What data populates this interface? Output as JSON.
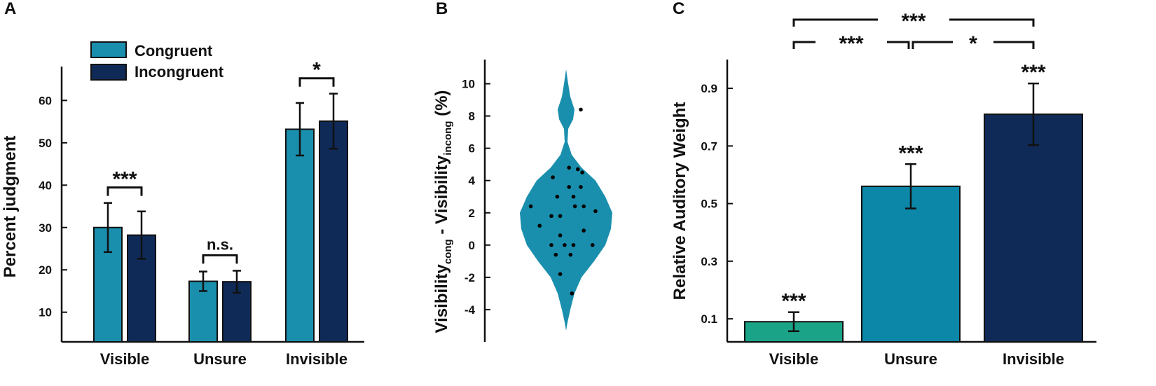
{
  "chart_data": [
    {
      "panel": "A",
      "type": "bar",
      "ylabel": "Percent judgment",
      "ylim": [
        3,
        68
      ],
      "yticks": [
        10,
        20,
        30,
        40,
        50,
        60
      ],
      "categories": [
        "Visible",
        "Unsure",
        "Invisible"
      ],
      "series": [
        {
          "name": "Congruent",
          "color": "#1a8fad",
          "values": [
            30,
            17.3,
            53.2
          ],
          "errors": [
            5.8,
            2.3,
            6.2
          ]
        },
        {
          "name": "Incongruent",
          "color": "#0f2a57",
          "values": [
            28.2,
            17.2,
            55.1
          ],
          "errors": [
            5.6,
            2.6,
            6.5
          ]
        }
      ],
      "significance": [
        "***",
        "n.s.",
        "*"
      ]
    },
    {
      "panel": "B",
      "type": "violin",
      "ylabel_main": "Visibility",
      "ylabel_sub1": "cong",
      "ylabel_mid": " - Visibility",
      "ylabel_sub2": "incong",
      "ylabel_end": " (%)",
      "ylim": [
        -6,
        11.5
      ],
      "yticks": [
        -4,
        -2,
        0,
        2,
        4,
        6,
        8,
        10
      ],
      "color": "#1a8fad",
      "points": [
        {
          "dx": 0.5,
          "y": 8.4
        },
        {
          "dx": 0.1,
          "y": 4.8
        },
        {
          "dx": 0.4,
          "y": 4.7
        },
        {
          "dx": -0.45,
          "y": 4.2
        },
        {
          "dx": 0.55,
          "y": 4.5
        },
        {
          "dx": 0.1,
          "y": 3.6
        },
        {
          "dx": 0.5,
          "y": 3.6
        },
        {
          "dx": -0.3,
          "y": 3.0
        },
        {
          "dx": 0.25,
          "y": 3.0
        },
        {
          "dx": -1.2,
          "y": 2.4
        },
        {
          "dx": 0.3,
          "y": 2.4
        },
        {
          "dx": 0.6,
          "y": 2.4
        },
        {
          "dx": 1.0,
          "y": 2.1
        },
        {
          "dx": -0.5,
          "y": 1.8
        },
        {
          "dx": -0.2,
          "y": 1.8
        },
        {
          "dx": -0.9,
          "y": 1.2
        },
        {
          "dx": 0.6,
          "y": 0.9
        },
        {
          "dx": -0.2,
          "y": 0.6
        },
        {
          "dx": -0.5,
          "y": 0.0
        },
        {
          "dx": -0.05,
          "y": 0.0
        },
        {
          "dx": 0.25,
          "y": 0.0
        },
        {
          "dx": 0.9,
          "y": 0.0
        },
        {
          "dx": -0.35,
          "y": -0.6
        },
        {
          "dx": 0.15,
          "y": -0.6
        },
        {
          "dx": -0.2,
          "y": -1.8
        },
        {
          "dx": 0.2,
          "y": -3.0
        }
      ]
    },
    {
      "panel": "C",
      "type": "bar",
      "ylabel": "Relative Auditory Weight",
      "ylim": [
        0.02,
        1.0
      ],
      "yticks": [
        "0.1",
        "0.3",
        "0.5",
        "0.7",
        "0.9"
      ],
      "categories": [
        "Visible",
        "Unsure",
        "Invisible"
      ],
      "values": [
        0.09,
        0.56,
        0.81
      ],
      "errors": [
        0.033,
        0.077,
        0.107
      ],
      "colors": [
        "#1aa387",
        "#0c87a8",
        "#0f2a57"
      ],
      "bar_significance": [
        "***",
        "***",
        "***"
      ],
      "pair_significance": [
        "***",
        "*",
        "***"
      ]
    }
  ]
}
